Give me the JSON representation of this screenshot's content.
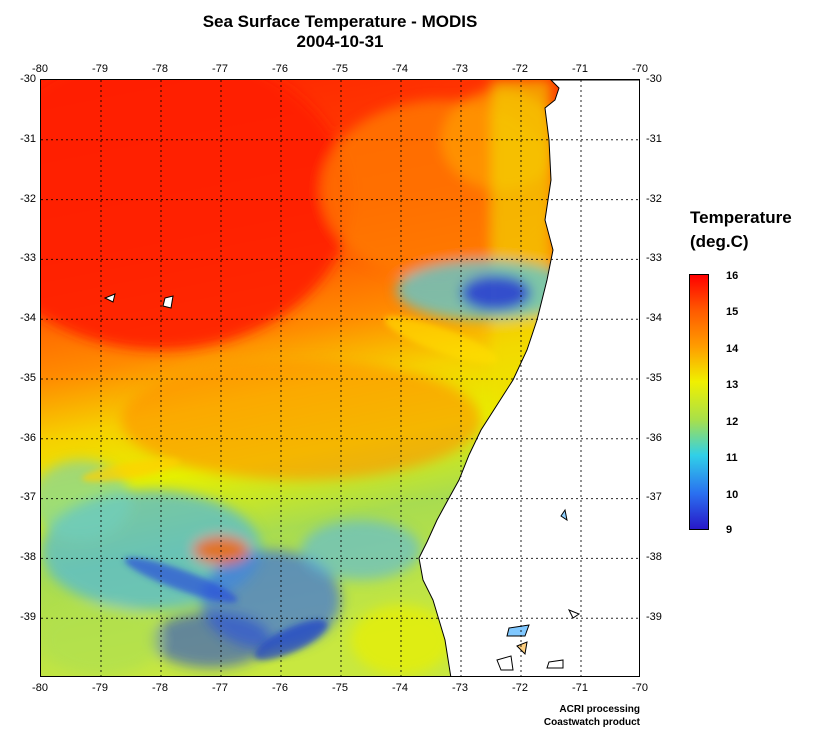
{
  "title": "Sea Surface Temperature - MODIS",
  "date": "2004-10-31",
  "lon_ticks": [
    "-80",
    "-79",
    "-78",
    "-77",
    "-76",
    "-75",
    "-74",
    "-73",
    "-72",
    "-71",
    "-70"
  ],
  "lat_ticks": [
    "-30",
    "-31",
    "-32",
    "-33",
    "-34",
    "-35",
    "-36",
    "-37",
    "-38",
    "-39"
  ],
  "legend": {
    "title_line1": "Temperature",
    "title_line2": "(deg.C)",
    "labels": [
      "16",
      "15",
      "14",
      "13",
      "12",
      "11",
      "10",
      "9"
    ]
  },
  "credit": {
    "line1": "ACRI processing",
    "line2": "Coastwatch product"
  },
  "colors": {
    "warm": "#ff2a00",
    "orange": "#ff9a00",
    "yellow": "#f0f000",
    "green": "#a8e04a",
    "cyan": "#40c8e8",
    "blue": "#2850d8",
    "land": "#ffffff"
  }
}
